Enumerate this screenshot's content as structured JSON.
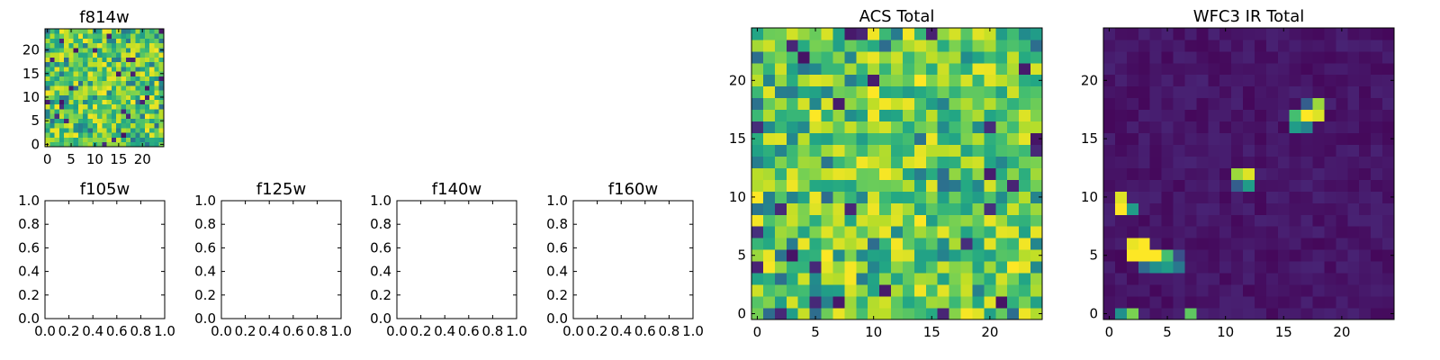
{
  "chart_data": [
    {
      "type": "heatmap",
      "title": "f814w",
      "xlabel": "",
      "ylabel": "",
      "xlim": [
        -0.5,
        24.5
      ],
      "ylim": [
        -0.5,
        24.5
      ],
      "xticks": [
        0,
        5,
        10,
        15,
        20
      ],
      "yticks": [
        0,
        5,
        10,
        15,
        20
      ],
      "xtick_labels": [
        "0",
        "5",
        "10",
        "15",
        "20"
      ],
      "ytick_labels": [
        "0",
        "5",
        "10",
        "15",
        "20"
      ],
      "grid": false,
      "colormap": "viridis",
      "grid_size": 25,
      "pattern": "acs"
    },
    {
      "type": "scatter",
      "title": "f105w",
      "xlabel": "",
      "ylabel": "",
      "xlim": [
        0,
        1
      ],
      "ylim": [
        0,
        1
      ],
      "xticks": [
        0,
        0.2,
        0.4,
        0.6,
        0.8,
        1.0
      ],
      "yticks": [
        0,
        0.2,
        0.4,
        0.6,
        0.8,
        1.0
      ],
      "xtick_labels": [
        "0.0",
        "0.2",
        "0.4",
        "0.6",
        "0.8",
        "1.0"
      ],
      "ytick_labels": [
        "0.0",
        "0.2",
        "0.4",
        "0.6",
        "0.8",
        "1.0"
      ],
      "grid": false,
      "series": []
    },
    {
      "type": "scatter",
      "title": "f125w",
      "xlabel": "",
      "ylabel": "",
      "xlim": [
        0,
        1
      ],
      "ylim": [
        0,
        1
      ],
      "xticks": [
        0,
        0.2,
        0.4,
        0.6,
        0.8,
        1.0
      ],
      "yticks": [
        0,
        0.2,
        0.4,
        0.6,
        0.8,
        1.0
      ],
      "xtick_labels": [
        "0.0",
        "0.2",
        "0.4",
        "0.6",
        "0.8",
        "1.0"
      ],
      "ytick_labels": [
        "0.0",
        "0.2",
        "0.4",
        "0.6",
        "0.8",
        "1.0"
      ],
      "grid": false,
      "series": []
    },
    {
      "type": "scatter",
      "title": "f140w",
      "xlabel": "",
      "ylabel": "",
      "xlim": [
        0,
        1
      ],
      "ylim": [
        0,
        1
      ],
      "xticks": [
        0,
        0.2,
        0.4,
        0.6,
        0.8,
        1.0
      ],
      "yticks": [
        0,
        0.2,
        0.4,
        0.6,
        0.8,
        1.0
      ],
      "xtick_labels": [
        "0.0",
        "0.2",
        "0.4",
        "0.6",
        "0.8",
        "1.0"
      ],
      "ytick_labels": [
        "0.0",
        "0.2",
        "0.4",
        "0.6",
        "0.8",
        "1.0"
      ],
      "grid": false,
      "series": []
    },
    {
      "type": "scatter",
      "title": "f160w",
      "xlabel": "",
      "ylabel": "",
      "xlim": [
        0,
        1
      ],
      "ylim": [
        0,
        1
      ],
      "xticks": [
        0,
        0.2,
        0.4,
        0.6,
        0.8,
        1.0
      ],
      "yticks": [
        0,
        0.2,
        0.4,
        0.6,
        0.8,
        1.0
      ],
      "xtick_labels": [
        "0.0",
        "0.2",
        "0.4",
        "0.6",
        "0.8",
        "1.0"
      ],
      "ytick_labels": [
        "0.0",
        "0.2",
        "0.4",
        "0.6",
        "0.8",
        "1.0"
      ],
      "grid": false,
      "series": []
    },
    {
      "type": "heatmap",
      "title": "ACS Total",
      "xlabel": "",
      "ylabel": "",
      "xlim": [
        -0.5,
        24.5
      ],
      "ylim": [
        -0.5,
        24.5
      ],
      "xticks": [
        0,
        5,
        10,
        15,
        20
      ],
      "yticks": [
        0,
        5,
        10,
        15,
        20
      ],
      "xtick_labels": [
        "0",
        "5",
        "10",
        "15",
        "20"
      ],
      "ytick_labels": [
        "0",
        "5",
        "10",
        "15",
        "20"
      ],
      "grid": false,
      "colormap": "viridis",
      "grid_size": 25,
      "pattern": "acs"
    },
    {
      "type": "heatmap",
      "title": "WFC3 IR Total",
      "xlabel": "",
      "ylabel": "",
      "xlim": [
        -0.5,
        24.5
      ],
      "ylim": [
        -0.5,
        24.5
      ],
      "xticks": [
        0,
        5,
        10,
        15,
        20
      ],
      "yticks": [
        0,
        5,
        10,
        15,
        20
      ],
      "xtick_labels": [
        "0",
        "5",
        "10",
        "15",
        "20"
      ],
      "ytick_labels": [
        "0",
        "5",
        "10",
        "15",
        "20"
      ],
      "grid": false,
      "colormap": "viridis",
      "grid_size": 25,
      "pattern": "sparse",
      "bright_pixels": [
        {
          "x": 2,
          "y": 5,
          "v": 1.0
        },
        {
          "x": 3,
          "y": 5,
          "v": 1.0
        },
        {
          "x": 4,
          "y": 5,
          "v": 1.0
        },
        {
          "x": 2,
          "y": 6,
          "v": 0.97
        },
        {
          "x": 3,
          "y": 6,
          "v": 1.0
        },
        {
          "x": 5,
          "y": 5,
          "v": 0.7
        },
        {
          "x": 5,
          "y": 4,
          "v": 0.55
        },
        {
          "x": 4,
          "y": 4,
          "v": 0.5
        },
        {
          "x": 3,
          "y": 4,
          "v": 0.35
        },
        {
          "x": 6,
          "y": 4,
          "v": 0.4
        },
        {
          "x": 6,
          "y": 5,
          "v": 0.25
        },
        {
          "x": 1,
          "y": 10,
          "v": 0.95
        },
        {
          "x": 1,
          "y": 9,
          "v": 1.0
        },
        {
          "x": 2,
          "y": 9,
          "v": 0.55
        },
        {
          "x": 1,
          "y": 0,
          "v": 0.5
        },
        {
          "x": 2,
          "y": 0,
          "v": 0.8
        },
        {
          "x": 7,
          "y": 0,
          "v": 0.75
        },
        {
          "x": 11,
          "y": 12,
          "v": 0.85
        },
        {
          "x": 12,
          "y": 12,
          "v": 0.95
        },
        {
          "x": 12,
          "y": 11,
          "v": 0.55
        },
        {
          "x": 11,
          "y": 11,
          "v": 0.3
        },
        {
          "x": 17,
          "y": 17,
          "v": 1.0
        },
        {
          "x": 18,
          "y": 17,
          "v": 0.95
        },
        {
          "x": 18,
          "y": 18,
          "v": 0.85
        },
        {
          "x": 16,
          "y": 17,
          "v": 0.7
        },
        {
          "x": 16,
          "y": 16,
          "v": 0.55
        },
        {
          "x": 17,
          "y": 16,
          "v": 0.45
        },
        {
          "x": 17,
          "y": 18,
          "v": 0.3
        }
      ]
    }
  ]
}
